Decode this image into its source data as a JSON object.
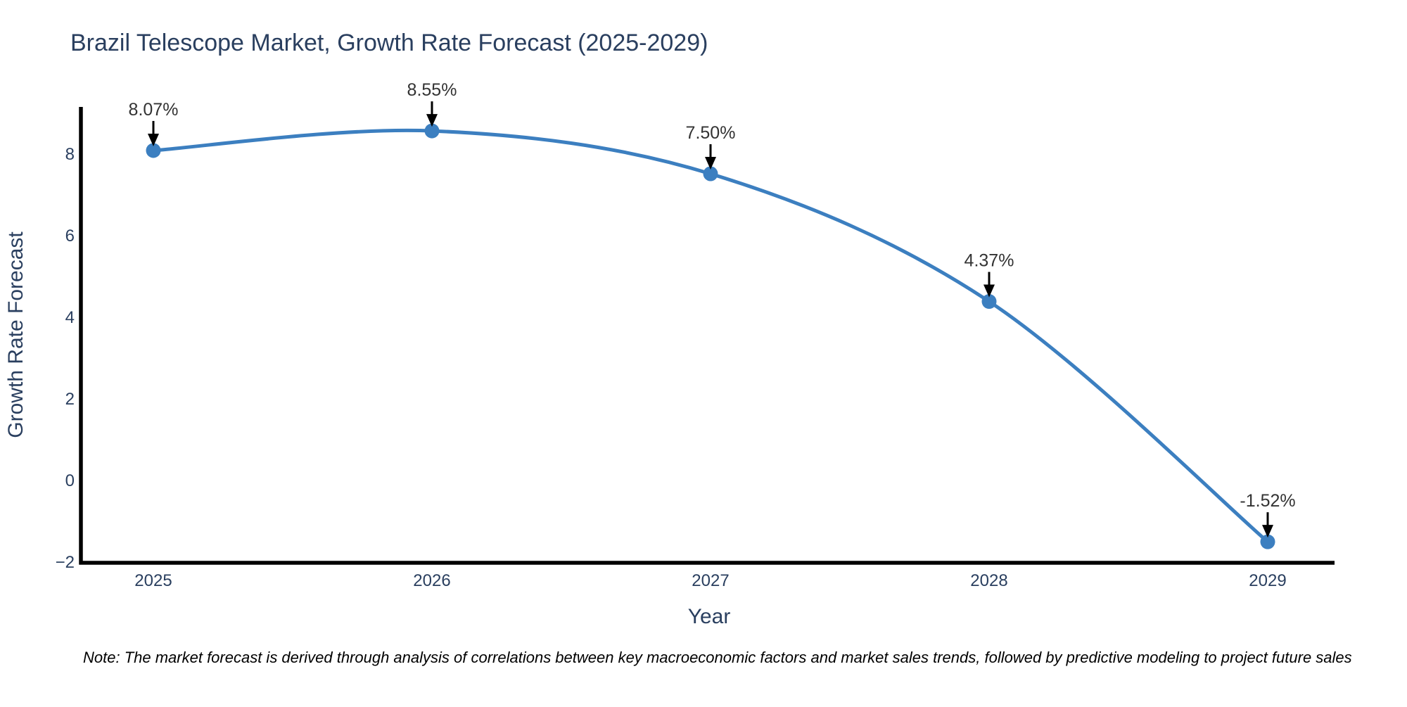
{
  "chart_data": {
    "type": "line",
    "title": "Brazil Telescope Market, Growth Rate Forecast (2025-2029)",
    "xlabel": "Year",
    "ylabel": "Growth Rate Forecast",
    "categories": [
      "2025",
      "2026",
      "2027",
      "2028",
      "2029"
    ],
    "series": [
      {
        "name": "Growth Rate Forecast",
        "values": [
          8.07,
          8.55,
          7.5,
          4.37,
          -1.52
        ]
      }
    ],
    "point_labels": [
      "8.07%",
      "8.55%",
      "7.50%",
      "4.37%",
      "-1.52%"
    ],
    "y_ticks": [
      8,
      6,
      4,
      2,
      0,
      -2
    ],
    "y_tick_labels": [
      "8",
      "6",
      "4",
      "2",
      "0",
      "−2"
    ],
    "ylim": [
      -2.05,
      9.17
    ],
    "grid": false,
    "legend_position": "none",
    "line_style": "smooth-spline",
    "marker": "circle",
    "colors": {
      "line": "#3c7fc0",
      "marker": "#3c7fc0",
      "axis_line": "#000000",
      "title_text": "#2a3f5f",
      "axis_title_text": "#2a3f5f",
      "tick_text": "#2a3f5f",
      "data_label_text": "#333333",
      "annotation_arrow": "#000000",
      "background": "#ffffff"
    }
  },
  "note": {
    "text": "Note: The market forecast is derived through analysis of correlations between key macroeconomic factors and market sales trends, followed by predictive modeling to project future sales"
  }
}
